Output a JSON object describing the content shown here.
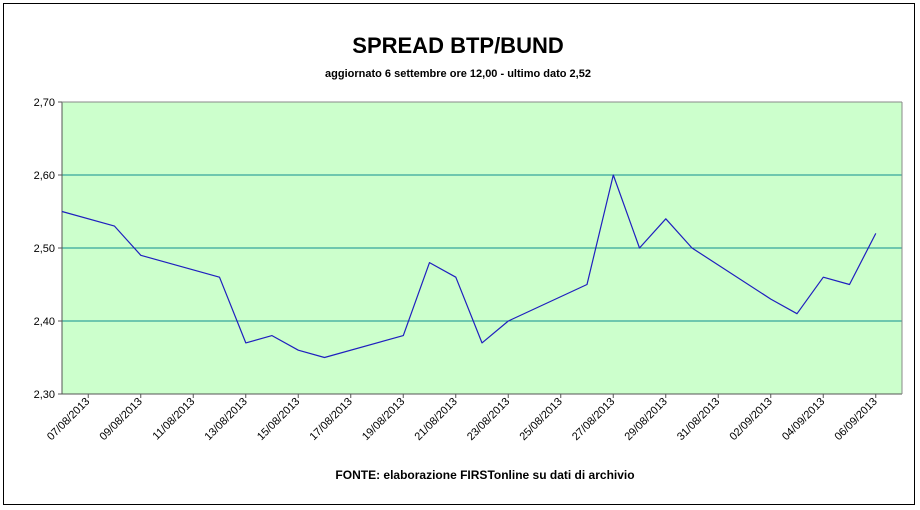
{
  "chart_data": {
    "type": "line",
    "title": "SPREAD BTP/BUND",
    "subtitle": "aggiornato 6 settembre ore 12,00 - ultimo dato 2,52",
    "source_note": "FONTE:  elaborazione FIRSTonline su dati di archivio",
    "plot_background": "#ccffcc",
    "line_color": "#1f1fbf",
    "grid_color": "#0f8f8f",
    "ylim": [
      2.3,
      2.7
    ],
    "yticks": [
      2.3,
      2.4,
      2.5,
      2.6,
      2.7
    ],
    "ytick_labels": [
      "2,30",
      "2,40",
      "2,50",
      "2,60",
      "2,70"
    ],
    "xlim": [
      "2013-08-06",
      "2013-09-07"
    ],
    "xtick_labels": [
      "07/08/2013",
      "09/08/2013",
      "11/08/2013",
      "13/08/2013",
      "15/08/2013",
      "17/08/2013",
      "19/08/2013",
      "21/08/2013",
      "23/08/2013",
      "25/08/2013",
      "27/08/2013",
      "29/08/2013",
      "31/08/2013",
      "02/09/2013",
      "04/09/2013",
      "06/09/2013"
    ],
    "xtick_dates": [
      "2013-08-07",
      "2013-08-09",
      "2013-08-11",
      "2013-08-13",
      "2013-08-15",
      "2013-08-17",
      "2013-08-19",
      "2013-08-21",
      "2013-08-23",
      "2013-08-25",
      "2013-08-27",
      "2013-08-29",
      "2013-08-31",
      "2013-09-02",
      "2013-09-04",
      "2013-09-06"
    ],
    "series": [
      {
        "x": [
          "2013-08-06",
          "2013-08-08",
          "2013-08-09",
          "2013-08-12",
          "2013-08-13",
          "2013-08-14",
          "2013-08-15",
          "2013-08-16",
          "2013-08-19",
          "2013-08-20",
          "2013-08-21",
          "2013-08-22",
          "2013-08-23",
          "2013-08-26",
          "2013-08-27",
          "2013-08-28",
          "2013-08-29",
          "2013-08-30",
          "2013-09-02",
          "2013-09-03",
          "2013-09-04",
          "2013-09-05",
          "2013-09-06"
        ],
        "values": [
          2.55,
          2.53,
          2.49,
          2.46,
          2.37,
          2.38,
          2.36,
          2.35,
          2.38,
          2.48,
          2.46,
          2.37,
          2.4,
          2.45,
          2.6,
          2.5,
          2.54,
          2.5,
          2.43,
          2.41,
          2.46,
          2.45,
          2.52
        ]
      }
    ],
    "grid": "horizontal",
    "legend": "none"
  }
}
